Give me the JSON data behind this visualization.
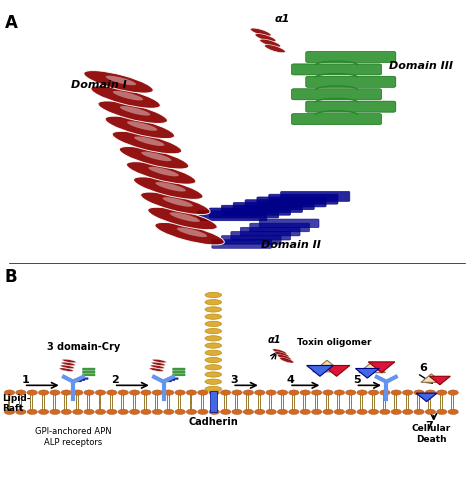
{
  "panel_A_label": "A",
  "panel_B_label": "B",
  "domain1_label": "Domain I",
  "domain2_label": "Domain II",
  "domain3_label": "Domain III",
  "alpha1_label": "α1",
  "color_domain1": "#8B0000",
  "color_domain2": "#00008B",
  "color_domain3": "#228B22",
  "color_membrane": "#D2691E",
  "color_cadherin": "#DAA520",
  "color_receptor": "#4169E1",
  "background": "#FFFFFF",
  "three_domain_cry": "3 domain-Cry",
  "cadherin_label": "Cadherin",
  "toxin_oligomer": "Toxin oligomer",
  "lipid_raft": "Lipid-\nRaft",
  "gpi_label": "GPI-anchored APN\nALP receptors",
  "cellular_death": "Cellular\nDeath"
}
